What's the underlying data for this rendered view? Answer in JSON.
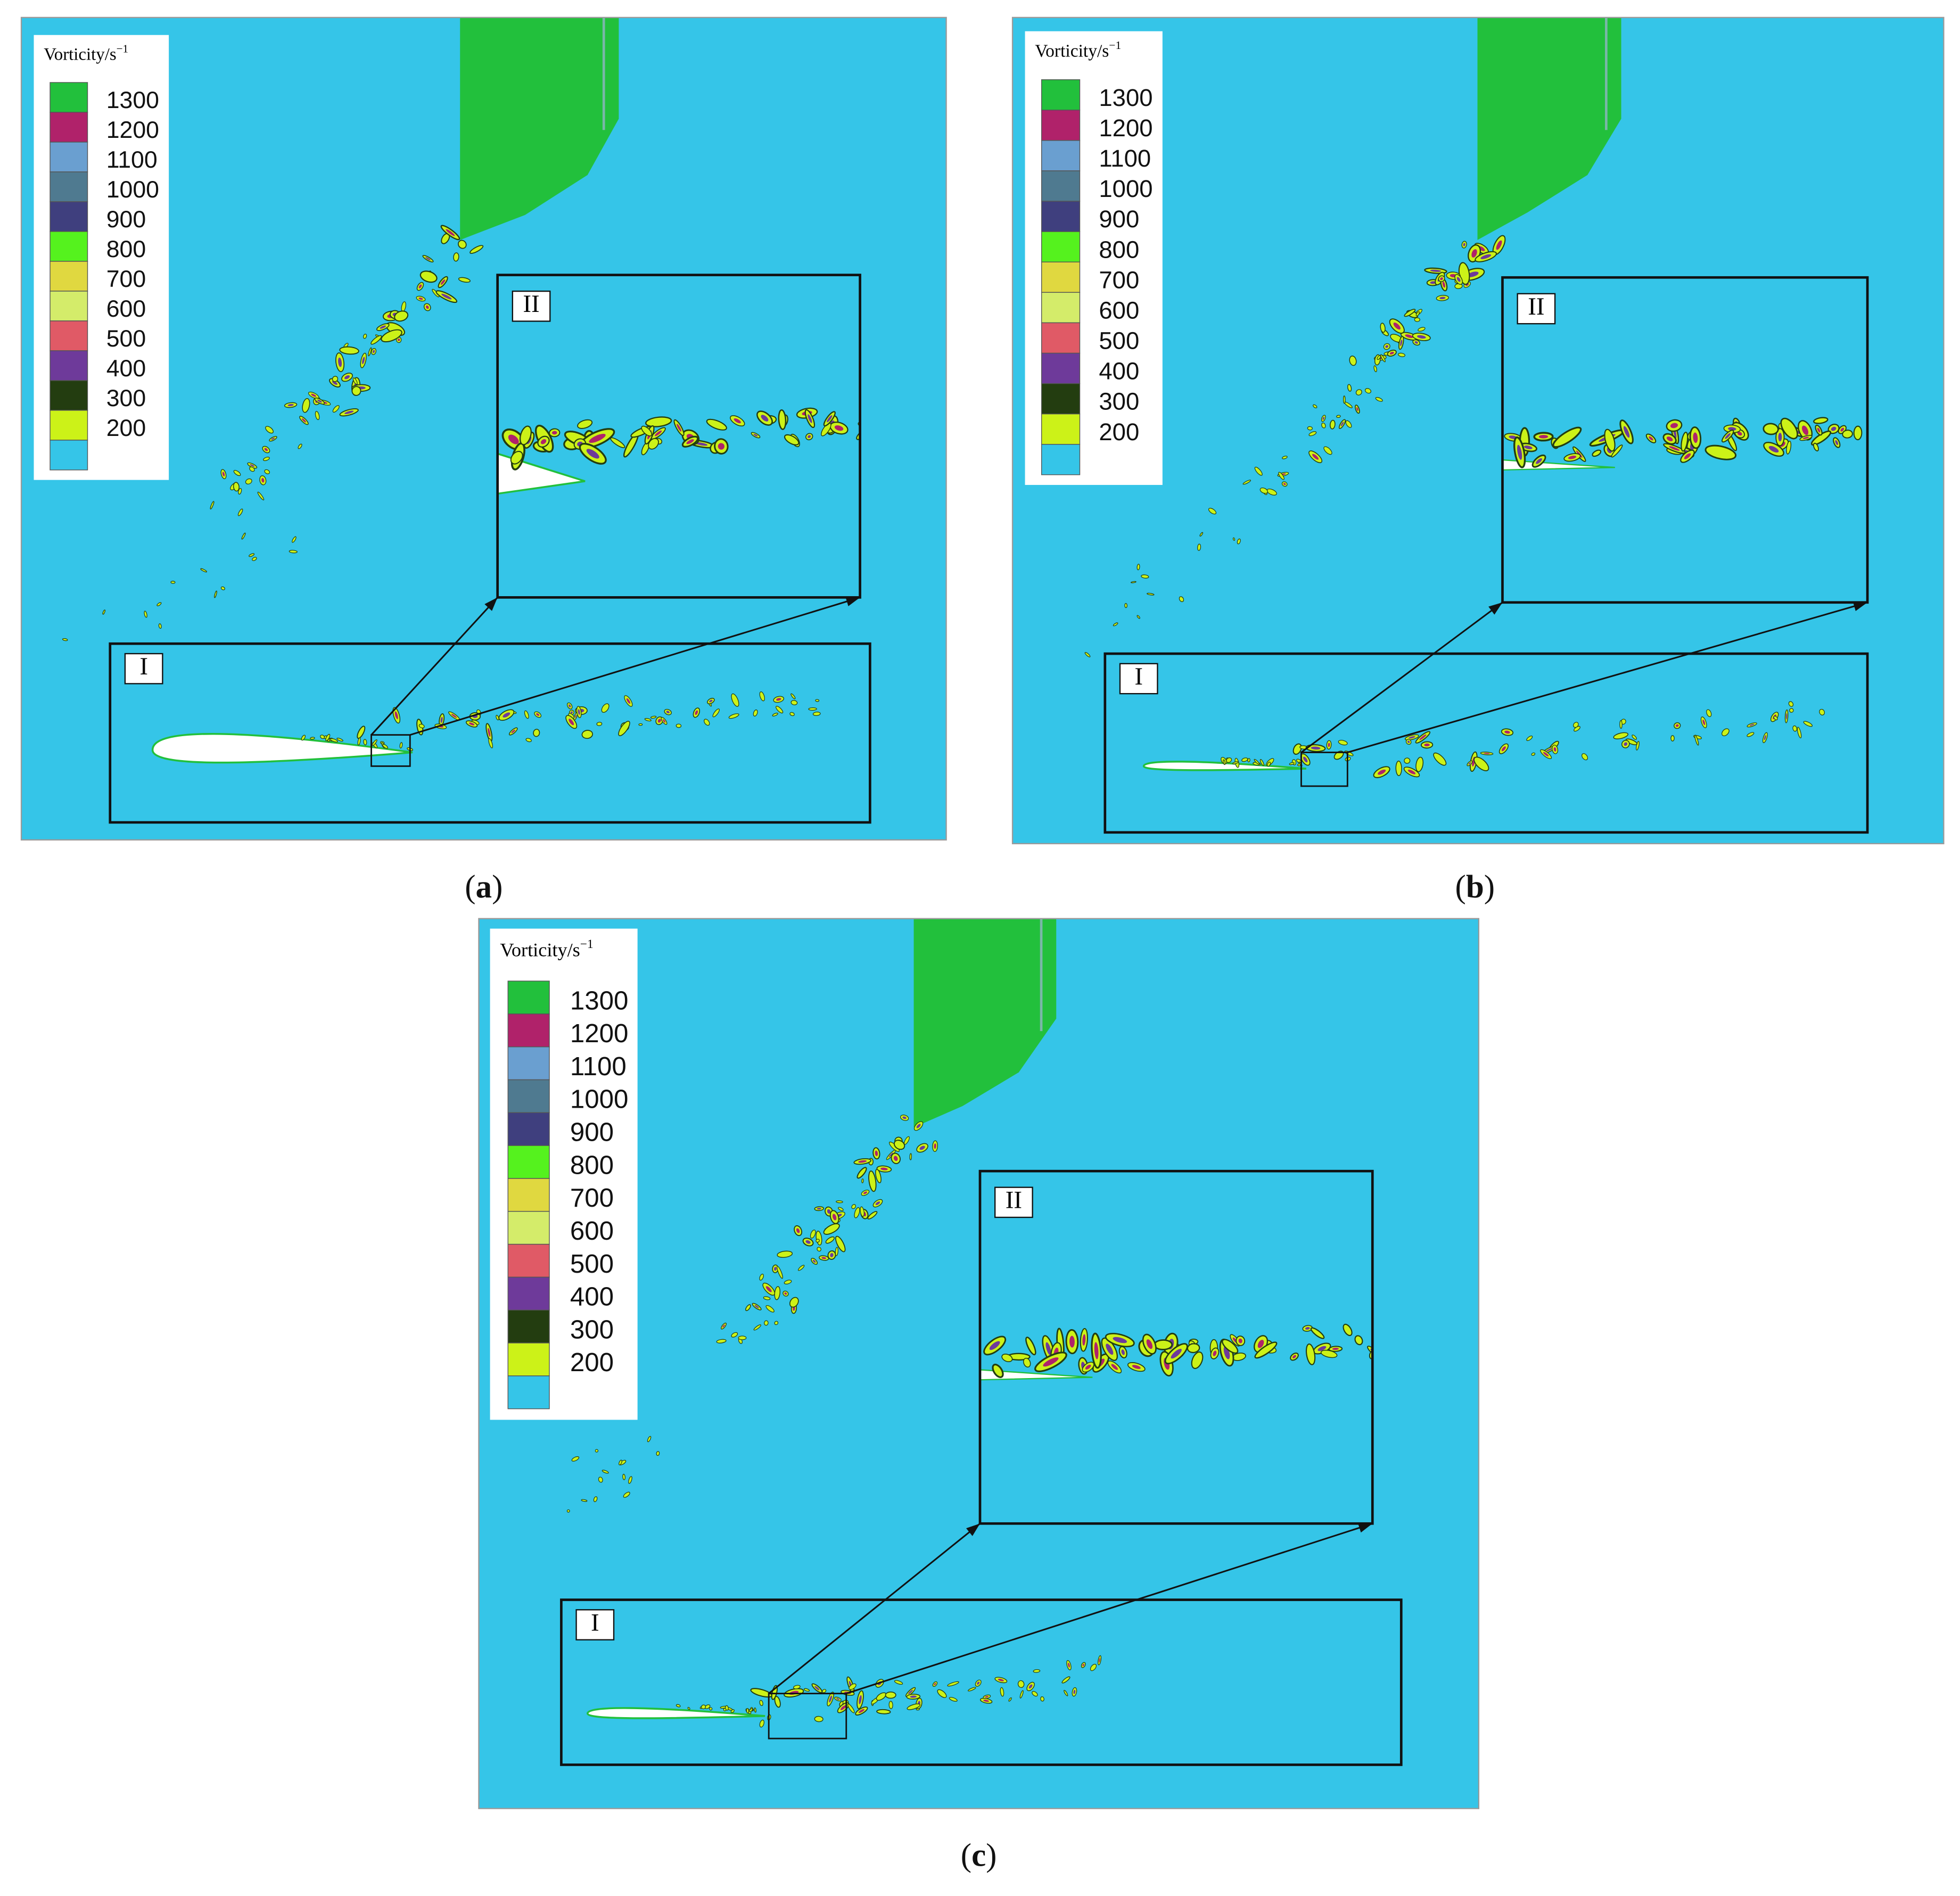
{
  "legend": {
    "title": "Vorticity/s",
    "title_superscript": "−1",
    "levels": [
      1300,
      1200,
      1100,
      1000,
      900,
      800,
      700,
      600,
      500,
      400,
      300,
      200
    ],
    "colors": [
      "#22c03c",
      "#b0226a",
      "#6a9fd0",
      "#4f7a90",
      "#3f3f7e",
      "#55f21e",
      "#e0d840",
      "#d4ec6a",
      "#e05a66",
      "#6e3a9a",
      "#233d10",
      "#ccf218",
      "#35c5e8"
    ]
  },
  "panels": [
    {
      "caption": [
        "(",
        "a",
        ")"
      ],
      "region_labels": [
        "I",
        "II"
      ]
    },
    {
      "caption": [
        "(",
        "b",
        ")"
      ],
      "region_labels": [
        "I",
        "II"
      ]
    },
    {
      "caption": [
        "(",
        "c",
        ")"
      ],
      "region_labels": [
        "I",
        "II"
      ]
    }
  ]
}
